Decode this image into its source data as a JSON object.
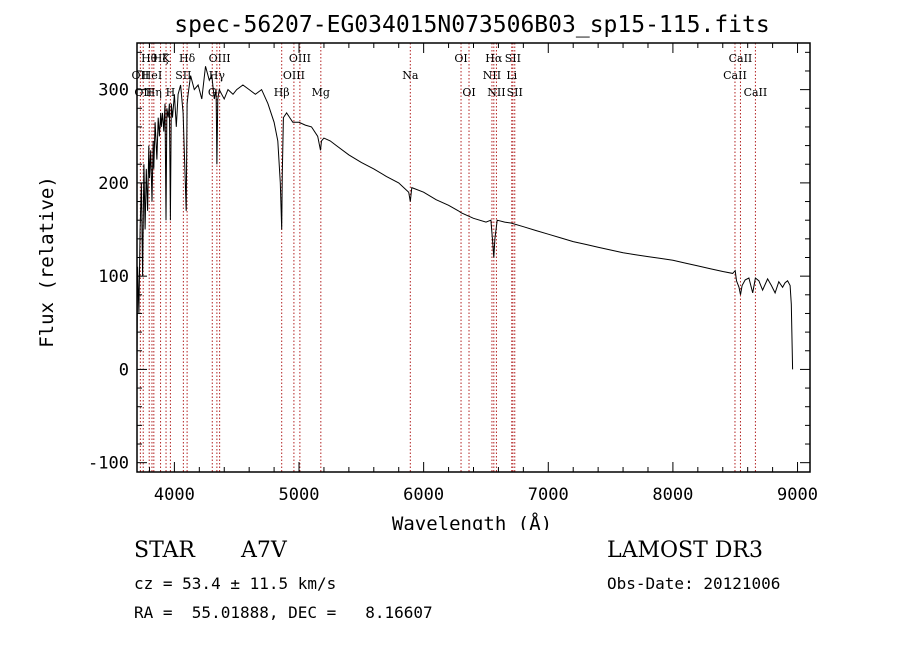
{
  "chart_data": {
    "type": "line",
    "title": "spec-56207-EG034015N073506B03_sp15-115.fits",
    "xlabel": "Wavelength (Å)",
    "ylabel": "Flux (relative)",
    "xlim": [
      3700,
      9100
    ],
    "ylim": [
      -110,
      350
    ],
    "xticks": [
      4000,
      5000,
      6000,
      7000,
      8000,
      9000
    ],
    "yticks": [
      -100,
      0,
      100,
      200,
      300
    ],
    "series": [
      {
        "name": "spectrum",
        "x": [
          3700,
          3705,
          3715,
          3725,
          3735,
          3745,
          3755,
          3765,
          3775,
          3785,
          3795,
          3800,
          3810,
          3820,
          3830,
          3835,
          3845,
          3860,
          3870,
          3880,
          3890,
          3895,
          3905,
          3915,
          3925,
          3933,
          3940,
          3950,
          3960,
          3968,
          3975,
          3985,
          4000,
          4015,
          4030,
          4050,
          4070,
          4095,
          4102,
          4110,
          4130,
          4160,
          4190,
          4220,
          4250,
          4280,
          4300,
          4320,
          4335,
          4341,
          4348,
          4360,
          4380,
          4400,
          4430,
          4470,
          4500,
          4550,
          4600,
          4650,
          4700,
          4750,
          4800,
          4830,
          4850,
          4861,
          4866,
          4875,
          4900,
          4950,
          5000,
          5050,
          5100,
          5150,
          5172,
          5180,
          5200,
          5250,
          5300,
          5400,
          5500,
          5600,
          5700,
          5800,
          5880,
          5893,
          5905,
          6000,
          6100,
          6200,
          6280,
          6300,
          6400,
          6500,
          6540,
          6555,
          6563,
          6572,
          6590,
          6650,
          6700,
          6800,
          6900,
          7000,
          7100,
          7200,
          7300,
          7400,
          7500,
          7600,
          7700,
          7800,
          7900,
          8000,
          8100,
          8200,
          8300,
          8400,
          8480,
          8500,
          8510,
          8530,
          8542,
          8555,
          8580,
          8610,
          8640,
          8662,
          8690,
          8720,
          8760,
          8790,
          8820,
          8850,
          8880,
          8900,
          8920,
          8940,
          8950,
          8960
        ],
        "values": [
          10,
          110,
          60,
          150,
          200,
          100,
          220,
          150,
          215,
          170,
          240,
          205,
          235,
          180,
          245,
          215,
          265,
          225,
          270,
          250,
          275,
          260,
          275,
          255,
          285,
          160,
          280,
          270,
          285,
          160,
          285,
          270,
          295,
          260,
          295,
          305,
          275,
          170,
          285,
          295,
          315,
          300,
          305,
          290,
          325,
          310,
          315,
          290,
          300,
          220,
          290,
          300,
          295,
          290,
          300,
          295,
          300,
          305,
          300,
          295,
          300,
          285,
          265,
          245,
          200,
          150,
          210,
          270,
          275,
          265,
          265,
          262,
          260,
          250,
          235,
          245,
          248,
          245,
          240,
          230,
          222,
          215,
          207,
          200,
          190,
          180,
          195,
          190,
          182,
          176,
          170,
          168,
          162,
          158,
          160,
          135,
          120,
          140,
          160,
          158,
          157,
          153,
          149,
          145,
          141,
          137,
          134,
          131,
          128,
          125,
          123,
          121,
          119,
          117,
          114,
          111,
          108,
          105,
          103,
          106,
          95,
          88,
          80,
          90,
          96,
          98,
          82,
          98,
          95,
          85,
          97,
          90,
          82,
          94,
          88,
          93,
          95,
          90,
          70,
          0
        ]
      }
    ],
    "lines": [
      {
        "wavelength": 3727,
        "label": "OII",
        "row": 2
      },
      {
        "wavelength": 3750,
        "label": "OII",
        "row": 3
      },
      {
        "wavelength": 3798,
        "label": "Hθ",
        "row": 1
      },
      {
        "wavelength": 3820,
        "label": "HeI",
        "row": 2
      },
      {
        "wavelength": 3835,
        "label": "Hη",
        "row": 3
      },
      {
        "wavelength": 3889,
        "label": "Hζ",
        "row": 1
      },
      {
        "wavelength": 3933,
        "label": "K",
        "row": 1
      },
      {
        "wavelength": 3968,
        "label": "H",
        "row": 3
      },
      {
        "wavelength": 4072,
        "label": "SII",
        "row": 2
      },
      {
        "wavelength": 4102,
        "label": "Hδ",
        "row": 1
      },
      {
        "wavelength": 4304,
        "label": "G",
        "row": 3
      },
      {
        "wavelength": 4341,
        "label": "Hγ",
        "row": 2
      },
      {
        "wavelength": 4363,
        "label": "OIII",
        "row": 1
      },
      {
        "wavelength": 4861,
        "label": "Hβ",
        "row": 3
      },
      {
        "wavelength": 4959,
        "label": "OIII",
        "row": 2
      },
      {
        "wavelength": 5007,
        "label": "OIII",
        "row": 1
      },
      {
        "wavelength": 5175,
        "label": "Mg",
        "row": 3
      },
      {
        "wavelength": 5893,
        "label": "Na",
        "row": 2
      },
      {
        "wavelength": 6300,
        "label": "OI",
        "row": 1
      },
      {
        "wavelength": 6364,
        "label": "OI",
        "row": 3
      },
      {
        "wavelength": 6548,
        "label": "NII",
        "row": 2
      },
      {
        "wavelength": 6563,
        "label": "Hα",
        "row": 1
      },
      {
        "wavelength": 6584,
        "label": "NII",
        "row": 3
      },
      {
        "wavelength": 6707,
        "label": "Li",
        "row": 2
      },
      {
        "wavelength": 6716,
        "label": "SII",
        "row": 1
      },
      {
        "wavelength": 6731,
        "label": "SII",
        "row": 3
      },
      {
        "wavelength": 8498,
        "label": "CaII",
        "row": 2
      },
      {
        "wavelength": 8542,
        "label": "CaII",
        "row": 1
      },
      {
        "wavelength": 8662,
        "label": "CaII",
        "row": 3
      }
    ]
  },
  "info": {
    "object_class": "STAR",
    "subclass": "A7V",
    "survey": "LAMOST DR3",
    "cz_line": "cz = 53.4 ± 11.5 km/s",
    "obs_date_line": "Obs-Date: 20121006",
    "coord_line": "RA =  55.01888, DEC =   8.16607"
  },
  "colors": {
    "line_marker": "#b22222",
    "spectrum": "#000000",
    "axes": "#000000"
  }
}
